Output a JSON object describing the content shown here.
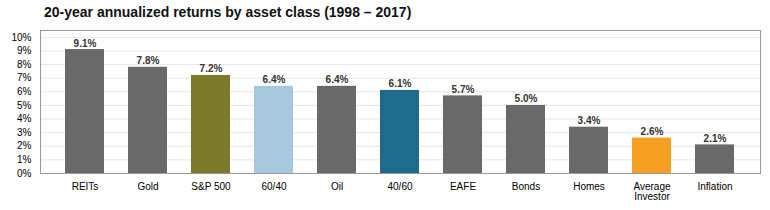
{
  "chart_data": {
    "type": "bar",
    "title": "20-year annualized returns by asset class (1998 – 2017)",
    "categories": [
      "REITs",
      "Gold",
      "S&P 500",
      "60/40",
      "Oil",
      "40/60",
      "EAFE",
      "Bonds",
      "Homes",
      "Average\nInvestor",
      "Inflation"
    ],
    "values": [
      9.1,
      7.8,
      7.2,
      6.4,
      6.4,
      6.1,
      5.7,
      5.0,
      3.4,
      2.6,
      2.1
    ],
    "value_labels": [
      "9.1%",
      "7.8%",
      "7.2%",
      "6.4%",
      "6.4%",
      "6.1%",
      "5.7%",
      "5.0%",
      "3.4%",
      "2.6%",
      "2.1%"
    ],
    "colors": [
      "#696969",
      "#696969",
      "#7a7a2a",
      "#a8c8de",
      "#696969",
      "#1e6b8c",
      "#696969",
      "#696969",
      "#696969",
      "#f5a020",
      "#696969"
    ],
    "ylim": [
      0,
      10.5
    ],
    "yticks": [
      {
        "value": 0,
        "label": "0%"
      },
      {
        "value": 1,
        "label": "1%"
      },
      {
        "value": 2,
        "label": "2%"
      },
      {
        "value": 3,
        "label": "3%"
      },
      {
        "value": 4,
        "label": "4%"
      },
      {
        "value": 5,
        "label": "5%"
      },
      {
        "value": 6,
        "label": "6%"
      },
      {
        "value": 7,
        "label": "7%"
      },
      {
        "value": 8,
        "label": "8%"
      },
      {
        "value": 9,
        "label": "9%"
      },
      {
        "value": 10,
        "label": "10%"
      }
    ],
    "grid": true,
    "data_labels": true
  }
}
